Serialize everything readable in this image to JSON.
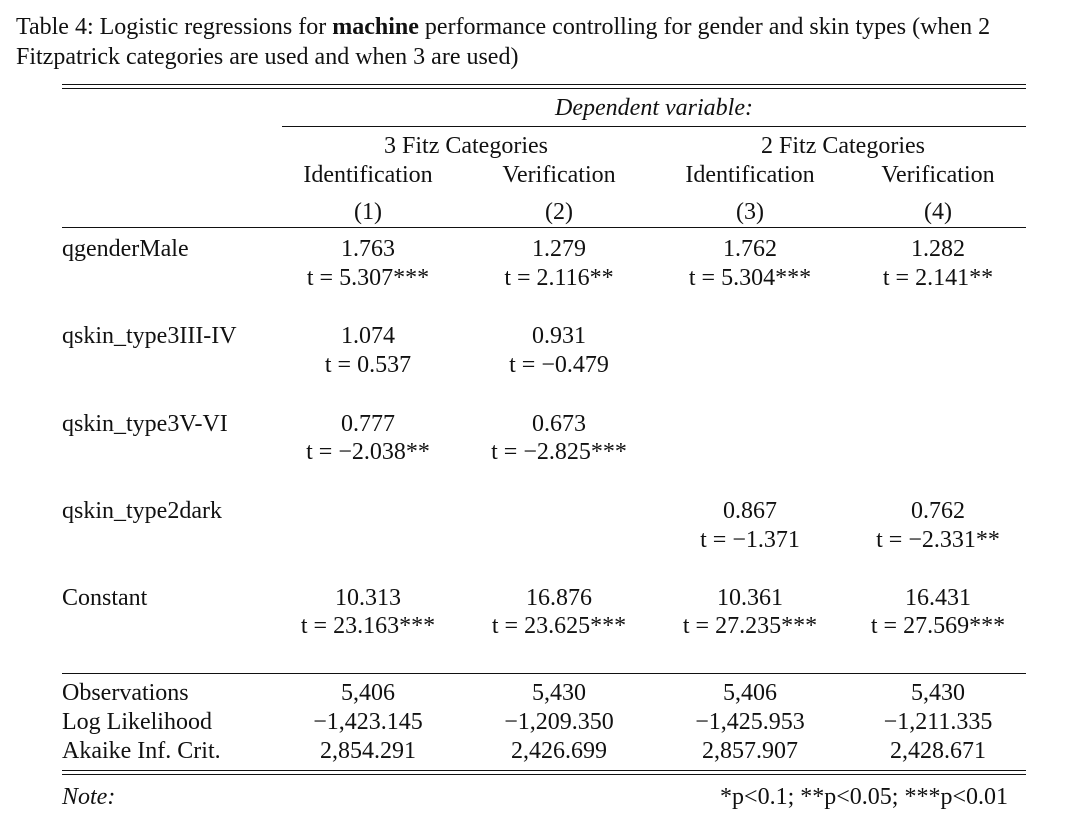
{
  "caption": {
    "prefix": "Table 4: Logistic regressions for ",
    "bold": "machine",
    "suffix": " performance controlling for gender and skin types (when 2 Fitzpatrick categories are used and when 3 are used)"
  },
  "table": {
    "dep_var_label": "Dependent variable:",
    "groups": [
      "3 Fitz Categories",
      "2 Fitz Categories"
    ],
    "columns": [
      "Identification",
      "Verification",
      "Identification",
      "Verification"
    ],
    "column_numbers": [
      "(1)",
      "(2)",
      "(3)",
      "(4)"
    ],
    "rows": [
      {
        "label": "qgenderMale",
        "coef": [
          "1.763",
          "1.279",
          "1.762",
          "1.282"
        ],
        "t": [
          "t = 5.307***",
          "t = 2.116**",
          "t = 5.304***",
          "t = 2.141**"
        ]
      },
      {
        "label": "qskin_type3III-IV",
        "coef": [
          "1.074",
          "0.931",
          "",
          ""
        ],
        "t": [
          "t = 0.537",
          "t = −0.479",
          "",
          ""
        ]
      },
      {
        "label": "qskin_type3V-VI",
        "coef": [
          "0.777",
          "0.673",
          "",
          ""
        ],
        "t": [
          "t = −2.038**",
          "t = −2.825***",
          "",
          ""
        ]
      },
      {
        "label": "qskin_type2dark",
        "coef": [
          "",
          "",
          "0.867",
          "0.762"
        ],
        "t": [
          "",
          "",
          "t = −1.371",
          "t = −2.331**"
        ]
      },
      {
        "label": "Constant",
        "coef": [
          "10.313",
          "16.876",
          "10.361",
          "16.431"
        ],
        "t": [
          "t = 23.163***",
          "t = 23.625***",
          "t = 27.235***",
          "t = 27.569***"
        ]
      }
    ],
    "stats": [
      {
        "label": "Observations",
        "values": [
          "5,406",
          "5,430",
          "5,406",
          "5,430"
        ]
      },
      {
        "label": "Log Likelihood",
        "values": [
          "−1,423.145",
          "−1,209.350",
          "−1,425.953",
          "−1,211.335"
        ]
      },
      {
        "label": "Akaike Inf. Crit.",
        "values": [
          "2,854.291",
          "2,426.699",
          "2,857.907",
          "2,428.671"
        ]
      }
    ],
    "note_label": "Note:",
    "note_text": "*p<0.1; **p<0.05; ***p<0.01"
  }
}
